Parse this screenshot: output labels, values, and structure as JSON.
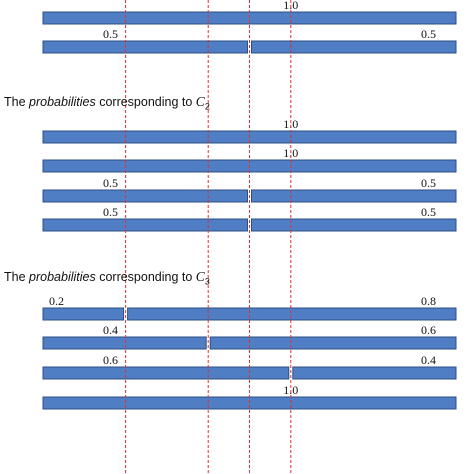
{
  "colors": {
    "bar_fill": "#4f7ec4",
    "bar_stroke": "#2d4f86",
    "guide_line": "#e0302a"
  },
  "groups": [
    {
      "heading": null,
      "rows": [
        {
          "segments": [
            {
              "value": 1.0,
              "label": "1.0"
            }
          ]
        },
        {
          "segments": [
            {
              "value": 0.5,
              "label": "0.5"
            },
            {
              "value": 0.5,
              "label": "0.5"
            }
          ]
        }
      ]
    },
    {
      "heading": {
        "prefix": "The ",
        "italic": "probabilities",
        "middle": " corresponding to ",
        "var": "C",
        "sub": "2"
      },
      "rows": [
        {
          "segments": [
            {
              "value": 1.0,
              "label": "1.0"
            }
          ]
        },
        {
          "segments": [
            {
              "value": 1.0,
              "label": "1.0"
            }
          ]
        },
        {
          "segments": [
            {
              "value": 0.5,
              "label": "0.5"
            },
            {
              "value": 0.5,
              "label": "0.5"
            }
          ]
        },
        {
          "segments": [
            {
              "value": 0.5,
              "label": "0.5"
            },
            {
              "value": 0.5,
              "label": "0.5"
            }
          ]
        }
      ]
    },
    {
      "heading": {
        "prefix": "The ",
        "italic": "probabilities",
        "middle": " corresponding to ",
        "var": "C",
        "sub": "3"
      },
      "rows": [
        {
          "segments": [
            {
              "value": 0.2,
              "label": "0.2"
            },
            {
              "value": 0.8,
              "label": "0.8"
            }
          ]
        },
        {
          "segments": [
            {
              "value": 0.4,
              "label": "0.4"
            },
            {
              "value": 0.6,
              "label": "0.6"
            }
          ]
        },
        {
          "segments": [
            {
              "value": 0.6,
              "label": "0.6"
            },
            {
              "value": 0.4,
              "label": "0.4"
            }
          ]
        },
        {
          "segments": [
            {
              "value": 1.0,
              "label": "1.0"
            }
          ]
        }
      ]
    }
  ],
  "guide_lines": [
    0.2,
    0.4,
    0.5,
    0.6
  ]
}
